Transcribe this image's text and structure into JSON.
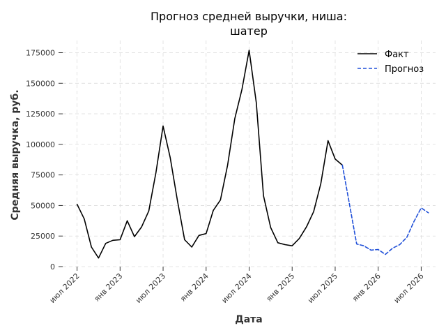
{
  "chart_data": {
    "type": "line",
    "title": [
      "Прогноз средней выручки, ниша:",
      "шатер"
    ],
    "xlabel": "Дата",
    "ylabel": "Средняя выручка, руб.",
    "ylim": [
      0,
      185000
    ],
    "y_ticks": [
      {
        "value": 0,
        "label": "0"
      },
      {
        "value": 25000,
        "label": "25000"
      },
      {
        "value": 50000,
        "label": "50000"
      },
      {
        "value": 75000,
        "label": "75000"
      },
      {
        "value": 100000,
        "label": "100000"
      },
      {
        "value": 125000,
        "label": "125000"
      },
      {
        "value": 150000,
        "label": "150000"
      },
      {
        "value": 175000,
        "label": "175000"
      }
    ],
    "x_ticks": [
      {
        "value": "2022-07",
        "label": "июл 2022"
      },
      {
        "value": "2023-01",
        "label": "янв 2023"
      },
      {
        "value": "2023-07",
        "label": "июл 2023"
      },
      {
        "value": "2024-01",
        "label": "янв 2024"
      },
      {
        "value": "2024-07",
        "label": "июл 2024"
      },
      {
        "value": "2025-01",
        "label": "янв 2025"
      },
      {
        "value": "2025-07",
        "label": "июл 2025"
      },
      {
        "value": "2026-01",
        "label": "янв 2026"
      },
      {
        "value": "2026-07",
        "label": "июл 2026"
      }
    ],
    "grid": true,
    "legend_position": "top-right",
    "series": [
      {
        "name": "Факт",
        "color": "#000000",
        "style": "solid",
        "x": [
          "2022-07",
          "2022-08",
          "2022-09",
          "2022-10",
          "2022-11",
          "2022-12",
          "2023-01",
          "2023-02",
          "2023-03",
          "2023-04",
          "2023-05",
          "2023-06",
          "2023-07",
          "2023-08",
          "2023-09",
          "2023-10",
          "2023-11",
          "2023-12",
          "2024-01",
          "2024-02",
          "2024-03",
          "2024-04",
          "2024-05",
          "2024-06",
          "2024-07",
          "2024-08",
          "2024-09",
          "2024-10",
          "2024-11",
          "2024-12",
          "2025-01",
          "2025-02",
          "2025-03",
          "2025-04",
          "2025-05",
          "2025-06",
          "2025-07",
          "2025-08"
        ],
        "values": [
          51000,
          39000,
          16000,
          7000,
          19000,
          21500,
          22000,
          37500,
          24500,
          32500,
          45500,
          77000,
          115000,
          89000,
          54000,
          22000,
          16000,
          25500,
          27000,
          46000,
          54500,
          83000,
          121000,
          145000,
          177000,
          134000,
          58000,
          32000,
          19500,
          18000,
          17000,
          23000,
          32500,
          45000,
          68000,
          103000,
          88000,
          83000
        ]
      },
      {
        "name": "Прогноз",
        "color": "#1f4fd8",
        "style": "dashed",
        "x": [
          "2025-08",
          "2025-09",
          "2025-10",
          "2025-11",
          "2025-12",
          "2026-01",
          "2026-02",
          "2026-03",
          "2026-04",
          "2026-05",
          "2026-06",
          "2026-07",
          "2026-08"
        ],
        "values": [
          83000,
          51000,
          18500,
          17000,
          13500,
          14000,
          10000,
          15000,
          18000,
          24000,
          37000,
          48000,
          44000
        ]
      }
    ]
  }
}
